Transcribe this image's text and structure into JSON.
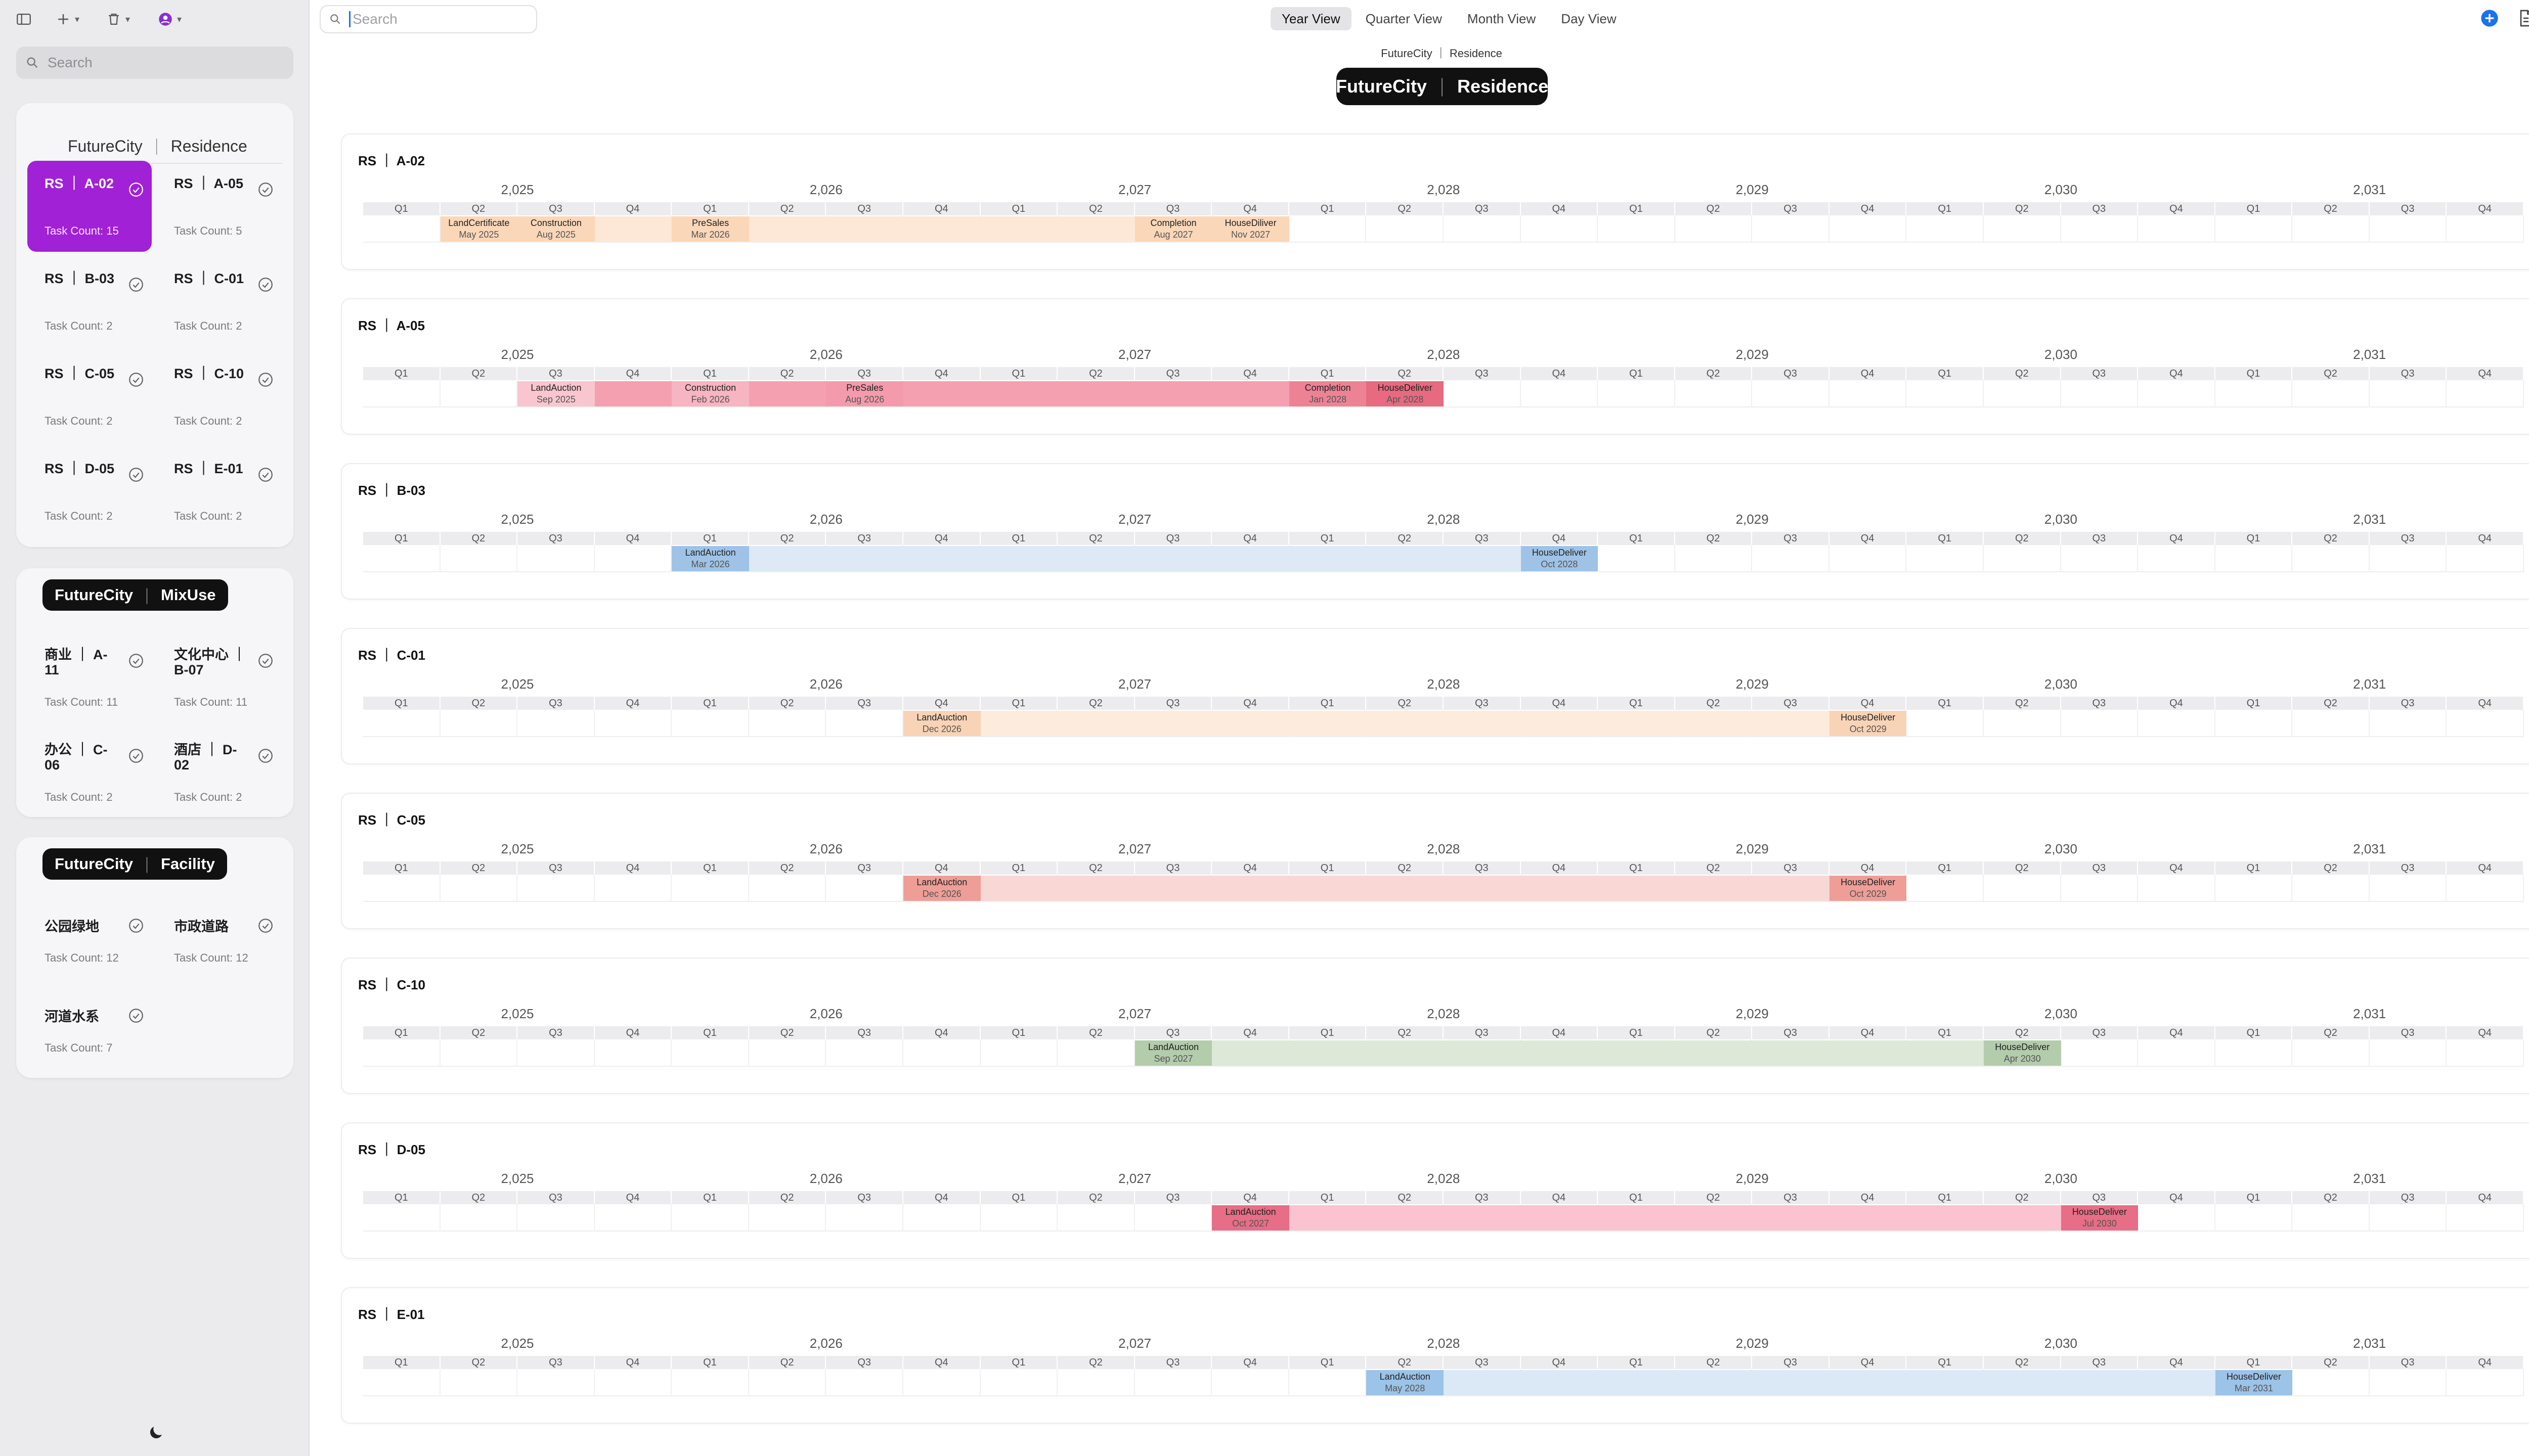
{
  "toolbar": {
    "left_buttons": [
      "sidebar-toggle-icon",
      "plus-icon",
      "trash-icon",
      "user-circle-icon"
    ],
    "search_placeholder": "Search"
  },
  "sidebar": {
    "search_placeholder": "Search",
    "groups": [
      {
        "name": "FutureCity",
        "type": "Residence",
        "projects": [
          {
            "prefix": "RS",
            "code": "A-02",
            "count": "Task Count: 15",
            "active": true
          },
          {
            "prefix": "RS",
            "code": "A-05",
            "count": "Task Count: 5"
          },
          {
            "prefix": "RS",
            "code": "B-03",
            "count": "Task Count: 2"
          },
          {
            "prefix": "RS",
            "code": "C-01",
            "count": "Task Count: 2"
          },
          {
            "prefix": "RS",
            "code": "C-05",
            "count": "Task Count: 2"
          },
          {
            "prefix": "RS",
            "code": "C-10",
            "count": "Task Count: 2"
          },
          {
            "prefix": "RS",
            "code": "D-05",
            "count": "Task Count: 2"
          },
          {
            "prefix": "RS",
            "code": "E-01",
            "count": "Task Count: 2"
          }
        ]
      },
      {
        "name": "FutureCity",
        "type": "MixUse",
        "projects": [
          {
            "prefix": "商业",
            "code": "A-11",
            "count": "Task Count: 11"
          },
          {
            "prefix": "文化中心",
            "code": "B-07",
            "count": "Task Count: 11"
          },
          {
            "prefix": "办公",
            "code": "C-06",
            "count": "Task Count: 2"
          },
          {
            "prefix": "酒店",
            "code": "D-02",
            "count": "Task Count: 2"
          }
        ]
      },
      {
        "name": "FutureCity",
        "type": "Facility",
        "projects": [
          {
            "prefix": "公园绿地",
            "code": "",
            "count": "Task Count: 12"
          },
          {
            "prefix": "市政道路",
            "code": "",
            "count": "Task Count: 12"
          },
          {
            "prefix": "河道水系",
            "code": "",
            "count": "Task Count: 7"
          }
        ]
      }
    ]
  },
  "view_tabs": [
    {
      "label": "Year View",
      "active": true
    },
    {
      "label": "Quarter View"
    },
    {
      "label": "Month View"
    },
    {
      "label": "Day View"
    }
  ],
  "header": {
    "breadcrumb": "FutureCity ｜ Residence",
    "title_left": "FutureCity",
    "title_right": "Residence"
  },
  "timeline": {
    "years": [
      "2,025",
      "2,026",
      "2,027",
      "2,028",
      "2,029",
      "2,030",
      "2,031"
    ],
    "quarters": [
      "Q1",
      "Q2",
      "Q3",
      "Q4"
    ],
    "start_year": 2025
  },
  "rows": [
    {
      "title": "RS ｜ A-02",
      "color": "#fde7d6",
      "accent": "#fad7b9",
      "span": [
        5,
        25
      ],
      "milestones": [
        {
          "label": "LandCertificate",
          "date": "May 2025",
          "q": 1
        },
        {
          "label": "Construction",
          "date": "Aug 2025",
          "q": 2
        },
        {
          "label": "PreSales",
          "date": "Mar 2026",
          "q": 4
        },
        {
          "label": "Completion",
          "date": "Aug 2027",
          "q": 10
        },
        {
          "label": "HouseDiliver",
          "date": "Nov 2027",
          "q": 11
        }
      ]
    },
    {
      "title": "RS ｜ A-05",
      "color": "#f5a0b0",
      "accent": "#e9707f",
      "span": [
        8,
        28
      ],
      "milestones": [
        {
          "label": "LandAuction",
          "date": "Sep 2025",
          "q": 2,
          "color": "#f9c6d0"
        },
        {
          "label": "Construction",
          "date": "Feb 2026",
          "q": 4,
          "color": "#f7b4c1"
        },
        {
          "label": "PreSales",
          "date": "Aug 2026",
          "q": 6,
          "color": "#f39bac"
        },
        {
          "label": "Completion",
          "date": "Jan 2028",
          "q": 12,
          "color": "#ee8295"
        },
        {
          "label": "HouseDeliver",
          "date": "Apr 2028",
          "q": 13,
          "color": "#e76a80"
        }
      ]
    },
    {
      "title": "RS ｜ B-03",
      "color": "#ddeaf6",
      "accent": "#9fc3e6",
      "span": [
        4,
        15
      ],
      "milestones": [
        {
          "label": "LandAuction",
          "date": "Mar 2026",
          "q": 4
        },
        {
          "label": "HouseDeliver",
          "date": "Oct 2028",
          "q": 15
        }
      ]
    },
    {
      "title": "RS ｜ C-01",
      "color": "#fdebdc",
      "accent": "#f8d3b5",
      "span": [
        7,
        19
      ],
      "milestones": [
        {
          "label": "LandAuction",
          "date": "Dec 2026",
          "q": 7
        },
        {
          "label": "HouseDeliver",
          "date": "Oct 2029",
          "q": 19
        }
      ]
    },
    {
      "title": "RS ｜ C-05",
      "color": "#f8d8d5",
      "accent": "#ee9e97",
      "span": [
        7,
        19
      ],
      "milestones": [
        {
          "label": "LandAuction",
          "date": "Dec 2026",
          "q": 7
        },
        {
          "label": "HouseDeliver",
          "date": "Oct 2029",
          "q": 19
        }
      ]
    },
    {
      "title": "RS ｜ C-10",
      "color": "#dde8d8",
      "accent": "#b3ccab",
      "span": [
        10,
        21
      ],
      "milestones": [
        {
          "label": "LandAuction",
          "date": "Sep 2027",
          "q": 10
        },
        {
          "label": "HouseDeliver",
          "date": "Apr 2030",
          "q": 21
        }
      ]
    },
    {
      "title": "RS ｜ D-05",
      "color": "#f9c3cf",
      "accent": "#e86d86",
      "span": [
        11,
        22
      ],
      "milestones": [
        {
          "label": "LandAuction",
          "date": "Oct 2027",
          "q": 11
        },
        {
          "label": "HouseDeliver",
          "date": "Jul 2030",
          "q": 22
        }
      ]
    },
    {
      "title": "RS ｜ E-01",
      "color": "#dbe9f6",
      "accent": "#9cc3e8",
      "span": [
        13,
        25
      ],
      "milestones": [
        {
          "label": "LandAuction",
          "date": "May 2028",
          "q": 13
        },
        {
          "label": "HouseDeliver",
          "date": "Mar 2031",
          "q": 24
        }
      ]
    }
  ]
}
